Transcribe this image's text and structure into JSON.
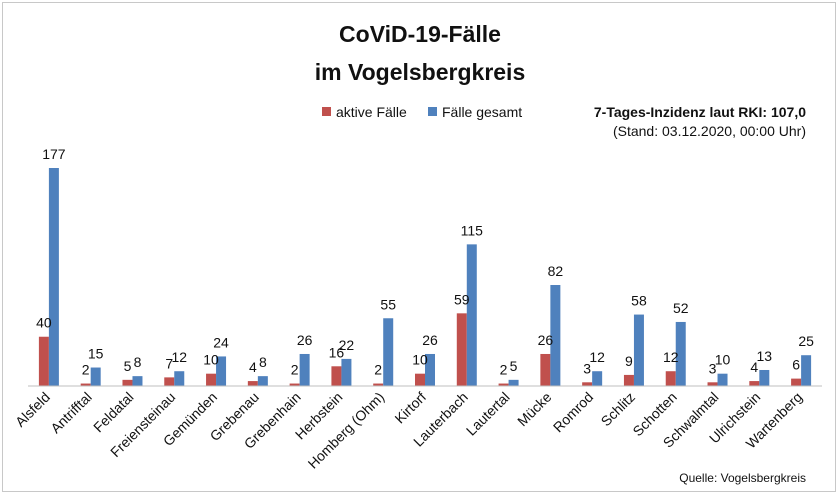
{
  "chart_data": {
    "type": "bar",
    "title_line1": "CoViD-19-Fälle",
    "title_line2": "im Vogelsbergkreis",
    "legend": [
      {
        "name": "aktive Fälle",
        "color": "#c0504d"
      },
      {
        "name": "Fälle gesamt",
        "color": "#4f81bd"
      }
    ],
    "legend_position": "top-center",
    "info_line1": "7-Tages-Inzidenz laut RKI: 107,0",
    "info_line2": "(Stand: 03.12.2020, 00:00 Uhr)",
    "source": "Quelle: Vogelsbergkreis",
    "categories": [
      "Alsfeld",
      "Antrifftal",
      "Feldatal",
      "Freiensteinau",
      "Gemünden",
      "Grebenau",
      "Grebenhain",
      "Herbstein",
      "Homberg (Ohm)",
      "Kirtorf",
      "Lauterbach",
      "Lautertal",
      "Mücke",
      "Romrod",
      "Schlitz",
      "Schotten",
      "Schwalmtal",
      "Ulrichstein",
      "Wartenberg"
    ],
    "series": [
      {
        "name": "aktive Fälle",
        "color": "#c0504d",
        "values": [
          40,
          2,
          5,
          7,
          10,
          4,
          2,
          16,
          2,
          10,
          59,
          2,
          26,
          3,
          9,
          12,
          3,
          4,
          6
        ]
      },
      {
        "name": "Fälle gesamt",
        "color": "#4f81bd",
        "values": [
          177,
          15,
          8,
          12,
          24,
          8,
          26,
          22,
          55,
          26,
          115,
          5,
          82,
          12,
          58,
          52,
          10,
          13,
          25
        ]
      }
    ],
    "ylim": [
      0,
      177
    ],
    "grid": false
  }
}
